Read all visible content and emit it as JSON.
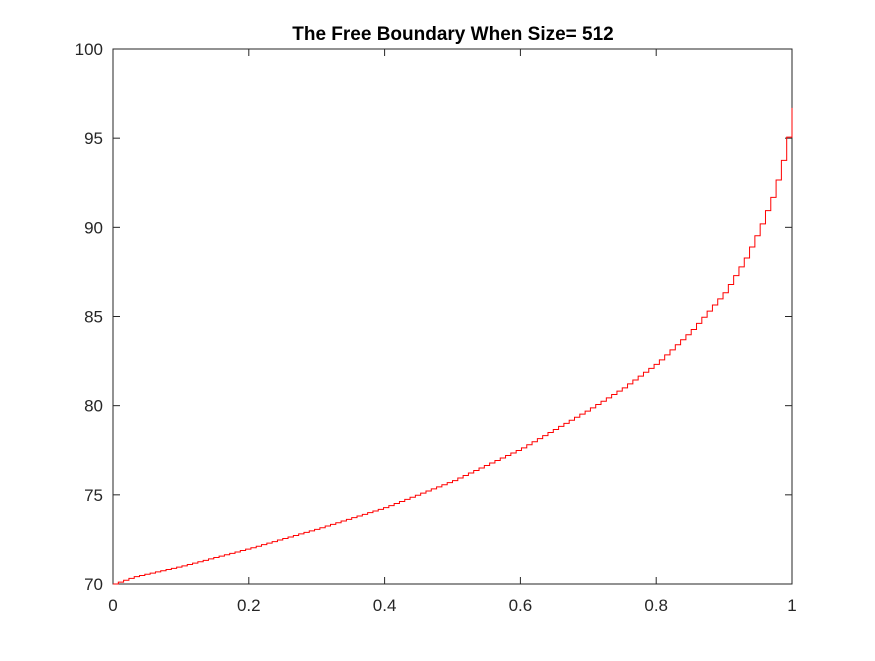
{
  "chart_data": {
    "type": "line",
    "title": "The Free Boundary When Size= 512",
    "xlabel": "",
    "ylabel": "",
    "xlim": [
      0,
      1
    ],
    "ylim": [
      70,
      100
    ],
    "xticks": [
      0,
      0.2,
      0.4,
      0.6,
      0.8,
      1
    ],
    "xtick_labels": [
      "0",
      "0.2",
      "0.4",
      "0.6",
      "0.8",
      "1"
    ],
    "yticks": [
      70,
      75,
      80,
      85,
      90,
      95,
      100
    ],
    "ytick_labels": [
      "70",
      "75",
      "80",
      "85",
      "90",
      "95",
      "100"
    ],
    "grid": false,
    "series": [
      {
        "color": "#ff0000",
        "step": true,
        "x": [
          0,
          0.03,
          0.1,
          0.2,
          0.3,
          0.4,
          0.5,
          0.6,
          0.7,
          0.75,
          0.8,
          0.85,
          0.9,
          0.93,
          0.95,
          0.97,
          0.98,
          0.99,
          1.0
        ],
        "y": [
          70.0,
          70.4,
          71.0,
          72.0,
          73.1,
          74.3,
          75.8,
          77.6,
          79.8,
          81.0,
          82.4,
          84.2,
          86.4,
          88.3,
          89.9,
          91.8,
          93.1,
          94.6,
          96.7
        ]
      }
    ]
  }
}
